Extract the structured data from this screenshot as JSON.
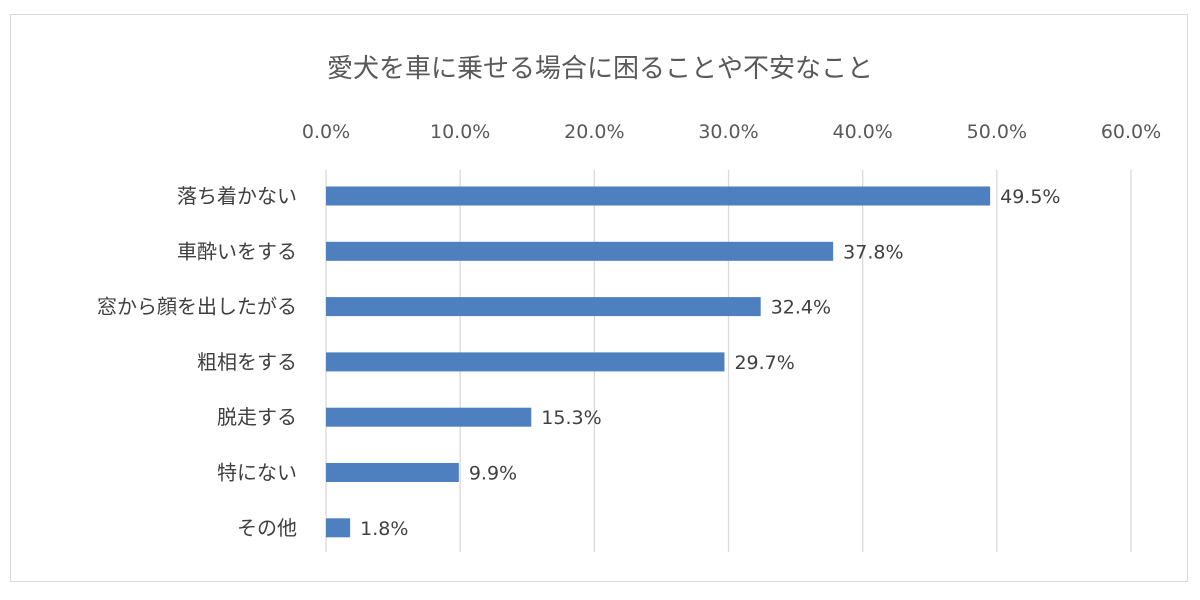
{
  "chart_data": {
    "type": "bar",
    "orientation": "horizontal",
    "title": "愛犬を車に乗せる場合に困ることや不安なこと",
    "categories": [
      "落ち着かない",
      "車酔いをする",
      "窓から顔を出したがる",
      "粗相をする",
      "脱走する",
      "特にない",
      "その他"
    ],
    "values": [
      49.5,
      37.8,
      32.4,
      29.7,
      15.3,
      9.9,
      1.8
    ],
    "data_labels": [
      "49.5%",
      "37.8%",
      "32.4%",
      "29.7%",
      "15.3%",
      "9.9%",
      "1.8%"
    ],
    "xlim": [
      0,
      60
    ],
    "ticks": [
      0,
      10,
      20,
      30,
      40,
      50,
      60
    ],
    "tick_labels": [
      "0.0%",
      "10.0%",
      "20.0%",
      "30.0%",
      "40.0%",
      "50.0%",
      "60.0%"
    ],
    "axis_position": "top",
    "grid": true,
    "bar_color": "#4e7fbf"
  }
}
